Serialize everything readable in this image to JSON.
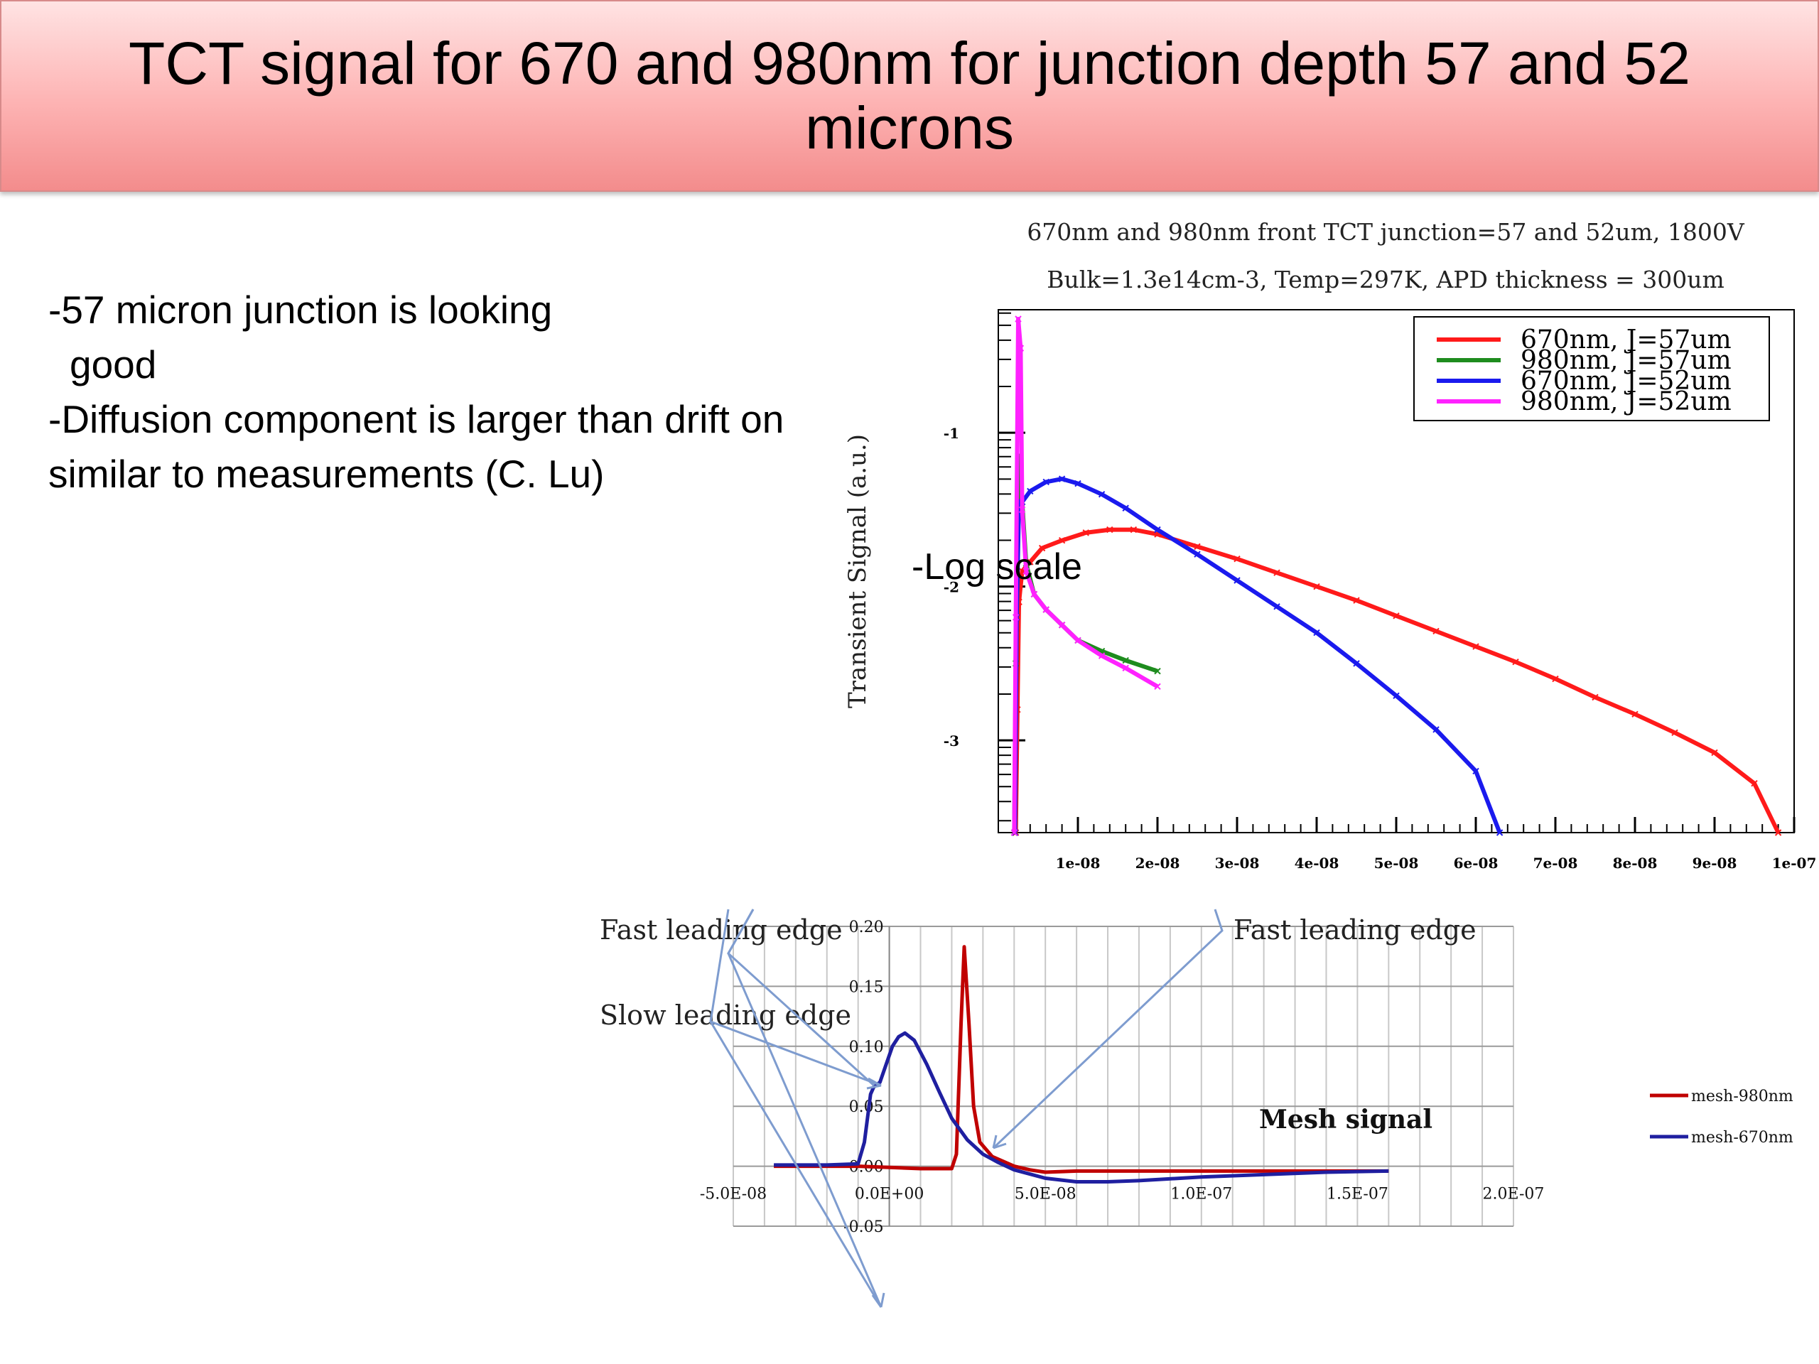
{
  "slide": {
    "title": "TCT signal for 670 and 980nm for junction depth 57 and 52 microns",
    "bullets": [
      "-57 micron junction is looking",
      "good",
      "-Diffusion component is larger than drift on",
      "similar to measurements (C. Lu)"
    ],
    "overlay_label": "-Log scale"
  },
  "chart_data": [
    {
      "type": "line",
      "title": "670nm and 980nm front TCT junction=57 and 52um, 1800V",
      "subtitle": "Bulk=1.3e14cm-3, Temp=297K, APD thickness = 300um",
      "xlabel": "",
      "ylabel": "Transient Signal (a.u.)",
      "y_scale": "log10",
      "xlim": [
        0,
        1e-07
      ],
      "ylim": [
        -3.6,
        -0.2
      ],
      "x_ticks": [
        "1e-08",
        "2e-08",
        "3e-08",
        "4e-08",
        "5e-08",
        "6e-08",
        "7e-08",
        "8e-08",
        "9e-08",
        "1e-07"
      ],
      "x_tick_values": [
        1e-08,
        2e-08,
        3e-08,
        4e-08,
        5e-08,
        6e-08,
        7e-08,
        8e-08,
        9e-08,
        1e-07
      ],
      "y_ticks": [
        "-1",
        "-2",
        "-3"
      ],
      "y_tick_values": [
        -1,
        -2,
        -3
      ],
      "legend_position": "top-right",
      "series": [
        {
          "name": "670nm, J=57um",
          "color": "#ff1a1a",
          "x": [
            2.2e-09,
            2.4e-09,
            2.6e-09,
            3e-09,
            4e-09,
            5.5e-09,
            8e-09,
            1.1e-08,
            1.4e-08,
            1.7e-08,
            2e-08,
            2.5e-08,
            3e-08,
            3.5e-08,
            4e-08,
            4.5e-08,
            5e-08,
            5.5e-08,
            6e-08,
            6.5e-08,
            7e-08,
            7.5e-08,
            8e-08,
            8.5e-08,
            9e-08,
            9.5e-08,
            9.8e-08
          ],
          "y": [
            -3.6,
            -2.8,
            -2.1,
            -1.9,
            -1.84,
            -1.75,
            -1.7,
            -1.65,
            -1.63,
            -1.63,
            -1.66,
            -1.74,
            -1.82,
            -1.91,
            -2.0,
            -2.09,
            -2.19,
            -2.29,
            -2.39,
            -2.49,
            -2.6,
            -2.72,
            -2.83,
            -2.95,
            -3.08,
            -3.28,
            -3.6
          ]
        },
        {
          "name": "980nm, J=57um",
          "color": "#1e8c1e",
          "x": [
            2e-09,
            2.2e-09,
            2.5e-09,
            3e-09,
            3.5e-09,
            4.5e-09,
            6e-09,
            8e-09,
            1e-08,
            1.3e-08,
            1.6e-08,
            2e-08
          ],
          "y": [
            -3.6,
            -2.5,
            -1.15,
            -1.45,
            -1.85,
            -2.05,
            -2.15,
            -2.25,
            -2.35,
            -2.42,
            -2.48,
            -2.55
          ]
        },
        {
          "name": "670nm, J=52um",
          "color": "#1a1aee",
          "x": [
            2.1e-09,
            2.3e-09,
            2.6e-09,
            3e-09,
            4e-09,
            6e-09,
            8e-09,
            1e-08,
            1.3e-08,
            1.6e-08,
            2e-08,
            2.5e-08,
            3e-08,
            3.5e-08,
            4e-08,
            4.5e-08,
            5e-08,
            5.5e-08,
            6e-08,
            6.3e-08
          ],
          "y": [
            -3.6,
            -2.2,
            -1.45,
            -1.45,
            -1.38,
            -1.32,
            -1.3,
            -1.33,
            -1.4,
            -1.49,
            -1.63,
            -1.79,
            -1.96,
            -2.13,
            -2.3,
            -2.5,
            -2.71,
            -2.93,
            -3.2,
            -3.6
          ]
        },
        {
          "name": "980nm, J=52um",
          "color": "#ff22ff",
          "x": [
            2e-09,
            2.2e-09,
            2.5e-09,
            2.8e-09,
            3e-09,
            3.5e-09,
            4.5e-09,
            6e-09,
            8e-09,
            1e-08,
            1.3e-08,
            1.6e-08,
            2e-08
          ],
          "y": [
            -3.6,
            -2.2,
            -0.26,
            -0.45,
            -1.5,
            -1.9,
            -2.05,
            -2.15,
            -2.25,
            -2.35,
            -2.45,
            -2.53,
            -2.65
          ]
        }
      ]
    },
    {
      "type": "line",
      "title": "",
      "annotation_center": "Mesh signal",
      "xlabel": "",
      "ylabel": "",
      "xlim": [
        -5e-08,
        2e-07
      ],
      "ylim": [
        -0.05,
        0.2
      ],
      "x_ticks": [
        "-5.0E-08",
        "0.0E+00",
        "5.0E-08",
        "1.0E-07",
        "1.5E-07",
        "2.0E-07"
      ],
      "x_tick_values": [
        -5e-08,
        0,
        5e-08,
        1e-07,
        1.5e-07,
        2e-07
      ],
      "y_ticks": [
        "0.20",
        "0.15",
        "0.10",
        "0.05",
        "0.00",
        "-0.05"
      ],
      "y_tick_values": [
        0.2,
        0.15,
        0.1,
        0.05,
        0.0,
        -0.05
      ],
      "legend_position": "right",
      "series": [
        {
          "name": "mesh-980nm",
          "color": "#c00000",
          "x": [
            -3.7e-08,
            -1e-08,
            0.0,
            1e-08,
            2e-08,
            2.15e-08,
            2.3e-08,
            2.4e-08,
            2.55e-08,
            2.7e-08,
            2.9e-08,
            3.3e-08,
            4e-08,
            4.5e-08,
            5e-08,
            6e-08,
            8e-08,
            1e-07,
            1.2e-07,
            1.4e-07,
            1.6e-07
          ],
          "y": [
            0.0,
            0.0,
            -0.001,
            -0.002,
            -0.002,
            0.01,
            0.12,
            0.183,
            0.12,
            0.05,
            0.02,
            0.008,
            0.0,
            -0.003,
            -0.005,
            -0.004,
            -0.004,
            -0.004,
            -0.004,
            -0.004,
            -0.004
          ]
        },
        {
          "name": "mesh-670nm",
          "color": "#1f1fa0",
          "x": [
            -3.7e-08,
            -2e-08,
            -1e-08,
            -8e-09,
            -6e-09,
            -5e-09,
            -3e-09,
            -1e-09,
            1e-09,
            3e-09,
            5e-09,
            8e-09,
            1.2e-08,
            1.6e-08,
            2e-08,
            2.5e-08,
            3e-08,
            3.5e-08,
            4e-08,
            5e-08,
            6e-08,
            7e-08,
            8e-08,
            1e-07,
            1.2e-07,
            1.4e-07,
            1.6e-07
          ],
          "y": [
            0.001,
            0.001,
            0.002,
            0.02,
            0.06,
            0.066,
            0.07,
            0.085,
            0.1,
            0.108,
            0.111,
            0.105,
            0.085,
            0.062,
            0.04,
            0.022,
            0.01,
            0.003,
            -0.003,
            -0.01,
            -0.013,
            -0.013,
            -0.012,
            -0.009,
            -0.007,
            -0.005,
            -0.004
          ]
        }
      ],
      "annotations": [
        "Fast leading edge",
        "Slow leading edge",
        "Fast leading edge"
      ]
    }
  ]
}
